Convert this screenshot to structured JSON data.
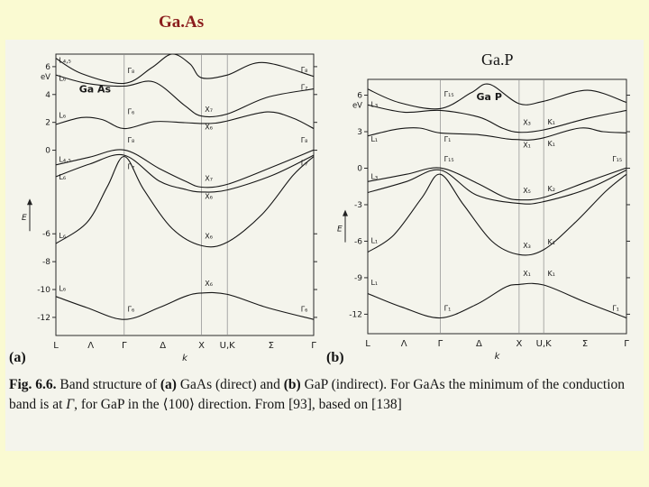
{
  "page": {
    "bg": "#fafad2",
    "panel_bg": "#f4f4ec"
  },
  "titles": {
    "gaas": "Ga.As",
    "gaas_color": "#8b1d1d",
    "gap": "Ga.P",
    "gap_color": "#141414"
  },
  "figure_labels": {
    "a": "(a)",
    "b": "(b)"
  },
  "caption": {
    "segments": [
      {
        "text": "Fig. 6.6.",
        "bold": true
      },
      {
        "text": " Band structure of ",
        "bold": false
      },
      {
        "text": "(a)",
        "bold": true
      },
      {
        "text": " GaAs (direct) and ",
        "bold": false
      },
      {
        "text": "(b)",
        "bold": true
      },
      {
        "text": " GaP (indirect). For GaAs the minimum of the conduction band is at ",
        "bold": false
      },
      {
        "text": "Γ",
        "bold": false,
        "italic": true
      },
      {
        "text": ", for GaP in the ⟨100⟩ direction. From [93], based on [138]",
        "bold": false
      }
    ]
  },
  "chart_data": [
    {
      "type": "line",
      "name": "GaAs band structure",
      "title": "Ga As",
      "ylabel": "E",
      "y_unit": "eV",
      "xlabel": "k",
      "ylim": [
        -13.3,
        6.9
      ],
      "yticks": [
        6,
        4,
        2,
        0,
        -6,
        -8,
        -10,
        -12
      ],
      "xticks": [
        {
          "x": 0.0,
          "label": "L"
        },
        {
          "x": 0.135,
          "label": "Λ"
        },
        {
          "x": 0.265,
          "label": "Γ"
        },
        {
          "x": 0.415,
          "label": "Δ"
        },
        {
          "x": 0.565,
          "label": "X"
        },
        {
          "x": 0.665,
          "label": "U,K"
        },
        {
          "x": 0.835,
          "label": "Σ"
        },
        {
          "x": 1.0,
          "label": "Γ"
        }
      ],
      "grid_x": [
        0.265,
        0.565,
        0.665
      ],
      "series": [
        {
          "name": "conduction-3",
          "points": [
            [
              0,
              6.6
            ],
            [
              0.1,
              5.5
            ],
            [
              0.265,
              4.8
            ],
            [
              0.37,
              5.9
            ],
            [
              0.45,
              6.9
            ],
            [
              0.52,
              6.2
            ],
            [
              0.565,
              5.2
            ],
            [
              0.665,
              5.4
            ],
            [
              0.8,
              6.3
            ],
            [
              1.0,
              5.3
            ]
          ]
        },
        {
          "name": "conduction-2",
          "points": [
            [
              0,
              5.4
            ],
            [
              0.12,
              4.8
            ],
            [
              0.265,
              4.6
            ],
            [
              0.38,
              4.9
            ],
            [
              0.5,
              3.2
            ],
            [
              0.565,
              2.45
            ],
            [
              0.665,
              2.6
            ],
            [
              0.82,
              3.8
            ],
            [
              1.0,
              4.4
            ]
          ]
        },
        {
          "name": "conduction-1",
          "points": [
            [
              0,
              1.85
            ],
            [
              0.1,
              2.35
            ],
            [
              0.18,
              2.2
            ],
            [
              0.265,
              1.55
            ],
            [
              0.38,
              2.05
            ],
            [
              0.5,
              1.98
            ],
            [
              0.565,
              1.92
            ],
            [
              0.62,
              1.95
            ],
            [
              0.665,
              2.1
            ],
            [
              0.82,
              2.75
            ],
            [
              0.92,
              2.3
            ],
            [
              1.0,
              1.55
            ]
          ]
        },
        {
          "name": "valence-heavy-hole",
          "points": [
            [
              0,
              -1.05
            ],
            [
              0.13,
              -0.5
            ],
            [
              0.265,
              0.02
            ],
            [
              0.4,
              -1.3
            ],
            [
              0.5,
              -2.2
            ],
            [
              0.565,
              -2.65
            ],
            [
              0.665,
              -2.45
            ],
            [
              0.84,
              -1.2
            ],
            [
              1.0,
              0.02
            ]
          ]
        },
        {
          "name": "valence-light-hole",
          "points": [
            [
              0,
              -1.9
            ],
            [
              0.13,
              -1.0
            ],
            [
              0.265,
              -0.36
            ],
            [
              0.4,
              -2.2
            ],
            [
              0.5,
              -2.8
            ],
            [
              0.565,
              -3.0
            ],
            [
              0.665,
              -2.85
            ],
            [
              0.84,
              -1.8
            ],
            [
              1.0,
              -0.36
            ]
          ]
        },
        {
          "name": "valence-2",
          "points": [
            [
              0,
              -6.7
            ],
            [
              0.12,
              -5.2
            ],
            [
              0.2,
              -2.6
            ],
            [
              0.265,
              -0.45
            ],
            [
              0.34,
              -2.8
            ],
            [
              0.45,
              -5.6
            ],
            [
              0.565,
              -6.85
            ],
            [
              0.665,
              -6.6
            ],
            [
              0.8,
              -4.6
            ],
            [
              0.92,
              -1.8
            ],
            [
              1.0,
              -0.45
            ]
          ]
        },
        {
          "name": "valence-1",
          "points": [
            [
              0,
              -10.5
            ],
            [
              0.12,
              -11.3
            ],
            [
              0.265,
              -12.15
            ],
            [
              0.4,
              -11.3
            ],
            [
              0.5,
              -10.5
            ],
            [
              0.565,
              -10.25
            ],
            [
              0.665,
              -10.35
            ],
            [
              0.82,
              -11.3
            ],
            [
              1.0,
              -12.15
            ]
          ]
        }
      ],
      "band_labels": [
        {
          "t": "L₄,₅",
          "x": 0.012,
          "y": 6.3
        },
        {
          "t": "L₆",
          "x": 0.012,
          "y": 5.0
        },
        {
          "t": "Ga As",
          "x": 0.09,
          "y": 4.15,
          "cls": "title"
        },
        {
          "t": "L₆",
          "x": 0.012,
          "y": 2.35
        },
        {
          "t": "Γ₈",
          "x": 0.278,
          "y": 5.55
        },
        {
          "t": "Γ₆",
          "x": 0.278,
          "y": 2.6
        },
        {
          "t": "X₇",
          "x": 0.578,
          "y": 2.75
        },
        {
          "t": "X₆",
          "x": 0.578,
          "y": 1.5
        },
        {
          "t": "Γ₈",
          "x": 0.95,
          "y": 5.6
        },
        {
          "t": "Γ₇",
          "x": 0.95,
          "y": 4.35
        },
        {
          "t": "Γ₈",
          "x": 0.278,
          "y": 0.55
        },
        {
          "t": "Γ₇",
          "x": 0.278,
          "y": -1.35
        },
        {
          "t": "L₄,₅",
          "x": 0.012,
          "y": -0.85
        },
        {
          "t": "L₆",
          "x": 0.012,
          "y": -2.1
        },
        {
          "t": "X₇",
          "x": 0.578,
          "y": -2.2
        },
        {
          "t": "X₆",
          "x": 0.578,
          "y": -3.5
        },
        {
          "t": "Γ₈",
          "x": 0.95,
          "y": 0.55
        },
        {
          "t": "Γ₇",
          "x": 0.95,
          "y": -1.1
        },
        {
          "t": "L₆",
          "x": 0.012,
          "y": -6.3
        },
        {
          "t": "X₆",
          "x": 0.578,
          "y": -6.35
        },
        {
          "t": "L₆",
          "x": 0.012,
          "y": -10.1
        },
        {
          "t": "X₆",
          "x": 0.578,
          "y": -9.75
        },
        {
          "t": "Γ₆",
          "x": 0.278,
          "y": -11.6
        },
        {
          "t": "Γ₆",
          "x": 0.95,
          "y": -11.6
        }
      ]
    },
    {
      "type": "line",
      "name": "GaP band structure",
      "title": "Ga P",
      "ylabel": "E",
      "y_unit": "eV",
      "xlabel": "k",
      "ylim": [
        -13.6,
        7.3
      ],
      "yticks": [
        6,
        3,
        0,
        -3,
        -6,
        -9,
        -12
      ],
      "xticks": [
        {
          "x": 0.0,
          "label": "L"
        },
        {
          "x": 0.14,
          "label": "Λ"
        },
        {
          "x": 0.28,
          "label": "Γ"
        },
        {
          "x": 0.43,
          "label": "Δ"
        },
        {
          "x": 0.585,
          "label": "X"
        },
        {
          "x": 0.68,
          "label": "U,K"
        },
        {
          "x": 0.84,
          "label": "Σ"
        },
        {
          "x": 1.0,
          "label": "Γ"
        }
      ],
      "grid_x": [
        0.28,
        0.585,
        0.68
      ],
      "series": [
        {
          "name": "conduction-3",
          "points": [
            [
              0,
              6.5
            ],
            [
              0.12,
              5.4
            ],
            [
              0.28,
              4.9
            ],
            [
              0.4,
              6.2
            ],
            [
              0.47,
              6.9
            ],
            [
              0.585,
              5.3
            ],
            [
              0.68,
              5.5
            ],
            [
              0.85,
              6.4
            ],
            [
              1.0,
              5.4
            ]
          ]
        },
        {
          "name": "conduction-2",
          "points": [
            [
              0,
              5.2
            ],
            [
              0.14,
              4.6
            ],
            [
              0.28,
              4.75
            ],
            [
              0.43,
              4.2
            ],
            [
              0.52,
              3.3
            ],
            [
              0.585,
              2.95
            ],
            [
              0.68,
              3.15
            ],
            [
              0.85,
              4.1
            ],
            [
              1.0,
              4.75
            ]
          ]
        },
        {
          "name": "conduction-1",
          "points": [
            [
              0,
              2.65
            ],
            [
              0.11,
              3.2
            ],
            [
              0.2,
              3.3
            ],
            [
              0.28,
              2.9
            ],
            [
              0.43,
              2.75
            ],
            [
              0.54,
              2.4
            ],
            [
              0.585,
              2.35
            ],
            [
              0.625,
              2.32
            ],
            [
              0.68,
              2.5
            ],
            [
              0.82,
              3.3
            ],
            [
              0.91,
              3.0
            ],
            [
              1.0,
              2.9
            ]
          ]
        },
        {
          "name": "valence-heavy-hole",
          "points": [
            [
              0,
              -1.1
            ],
            [
              0.15,
              -0.5
            ],
            [
              0.28,
              0.02
            ],
            [
              0.42,
              -1.2
            ],
            [
              0.52,
              -2.3
            ],
            [
              0.585,
              -2.6
            ],
            [
              0.68,
              -2.4
            ],
            [
              0.85,
              -1.1
            ],
            [
              1.0,
              0.02
            ]
          ]
        },
        {
          "name": "valence-light-hole",
          "points": [
            [
              0,
              -2.0
            ],
            [
              0.15,
              -1.1
            ],
            [
              0.28,
              -0.15
            ],
            [
              0.42,
              -2.2
            ],
            [
              0.585,
              -2.9
            ],
            [
              0.68,
              -2.75
            ],
            [
              0.85,
              -1.7
            ],
            [
              1.0,
              -0.15
            ]
          ]
        },
        {
          "name": "valence-2",
          "points": [
            [
              0,
              -6.9
            ],
            [
              0.1,
              -5.5
            ],
            [
              0.21,
              -2.4
            ],
            [
              0.28,
              -0.5
            ],
            [
              0.37,
              -3.0
            ],
            [
              0.48,
              -6.0
            ],
            [
              0.585,
              -7.1
            ],
            [
              0.68,
              -6.7
            ],
            [
              0.8,
              -4.5
            ],
            [
              0.92,
              -1.9
            ],
            [
              1.0,
              -0.5
            ]
          ]
        },
        {
          "name": "valence-1",
          "points": [
            [
              0,
              -10.3
            ],
            [
              0.13,
              -11.4
            ],
            [
              0.28,
              -12.3
            ],
            [
              0.42,
              -11.2
            ],
            [
              0.53,
              -9.8
            ],
            [
              0.585,
              -9.55
            ],
            [
              0.68,
              -9.6
            ],
            [
              0.84,
              -11.0
            ],
            [
              1.0,
              -12.3
            ]
          ]
        }
      ],
      "band_labels": [
        {
          "t": "L₃",
          "x": 0.012,
          "y": 5.05
        },
        {
          "t": "Γ₁₅",
          "x": 0.295,
          "y": 5.9
        },
        {
          "t": "Ga P",
          "x": 0.42,
          "y": 5.6,
          "cls": "title"
        },
        {
          "t": "X₃",
          "x": 0.6,
          "y": 3.55
        },
        {
          "t": "K₁",
          "x": 0.695,
          "y": 3.6
        },
        {
          "t": "L₁",
          "x": 0.012,
          "y": 2.2
        },
        {
          "t": "Γ₁",
          "x": 0.295,
          "y": 2.2
        },
        {
          "t": "X₁",
          "x": 0.6,
          "y": 1.7
        },
        {
          "t": "K₁",
          "x": 0.695,
          "y": 1.8
        },
        {
          "t": "Γ₁₅",
          "x": 0.295,
          "y": 0.55
        },
        {
          "t": "Γ₁₅",
          "x": 0.945,
          "y": 0.55
        },
        {
          "t": "L₃",
          "x": 0.012,
          "y": -0.9
        },
        {
          "t": "X₅",
          "x": 0.6,
          "y": -2.05
        },
        {
          "t": "K₂",
          "x": 0.695,
          "y": -1.9
        },
        {
          "t": "L₁",
          "x": 0.012,
          "y": -6.15
        },
        {
          "t": "X₃",
          "x": 0.6,
          "y": -6.55
        },
        {
          "t": "K₁",
          "x": 0.695,
          "y": -6.25
        },
        {
          "t": "L₁",
          "x": 0.012,
          "y": -9.6
        },
        {
          "t": "X₁",
          "x": 0.6,
          "y": -8.85
        },
        {
          "t": "K₁",
          "x": 0.695,
          "y": -8.85
        },
        {
          "t": "Γ₁",
          "x": 0.295,
          "y": -11.7
        },
        {
          "t": "Γ₁",
          "x": 0.945,
          "y": -11.7
        }
      ]
    }
  ]
}
